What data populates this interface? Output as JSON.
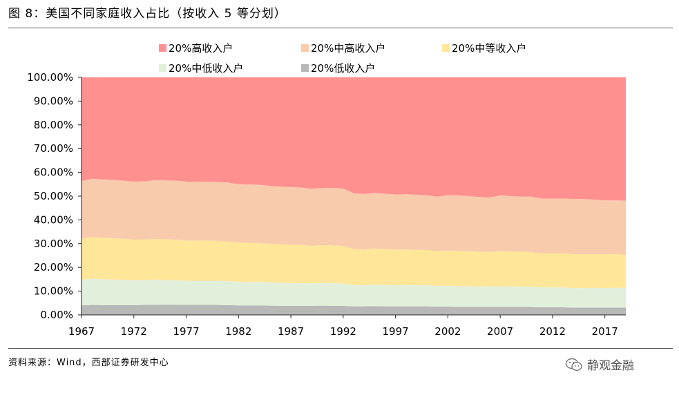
{
  "figure": {
    "title": "图 8：美国不同家庭收入占比（按收入 5 等分划）",
    "source": "资料来源：Wind，西部证券研发中心",
    "brand": "静观金融",
    "brand_icon": "wechat-icon"
  },
  "chart_data": {
    "type": "area",
    "stacked": true,
    "x": [
      1967,
      1968,
      1969,
      1970,
      1971,
      1972,
      1973,
      1974,
      1975,
      1976,
      1977,
      1978,
      1979,
      1980,
      1981,
      1982,
      1983,
      1984,
      1985,
      1986,
      1987,
      1988,
      1989,
      1990,
      1991,
      1992,
      1993,
      1994,
      1995,
      1996,
      1997,
      1998,
      1999,
      2000,
      2001,
      2002,
      2003,
      2004,
      2005,
      2006,
      2007,
      2008,
      2009,
      2010,
      2011,
      2012,
      2013,
      2014,
      2015,
      2016,
      2017,
      2018,
      2019
    ],
    "x_ticks": [
      1967,
      1972,
      1977,
      1982,
      1987,
      1992,
      1997,
      2002,
      2007,
      2012,
      2017
    ],
    "ylim": [
      0,
      100
    ],
    "y_ticks": [
      "0.00%",
      "10.00%",
      "20.00%",
      "30.00%",
      "40.00%",
      "50.00%",
      "60.00%",
      "70.00%",
      "80.00%",
      "90.00%",
      "100.00%"
    ],
    "legend_position": "top",
    "series": [
      {
        "name": "20%低收入户",
        "color": "#b8b8b8",
        "values": [
          4.0,
          4.2,
          4.1,
          4.1,
          4.1,
          4.1,
          4.2,
          4.3,
          4.3,
          4.3,
          4.2,
          4.2,
          4.2,
          4.2,
          4.1,
          4.0,
          4.0,
          4.0,
          3.9,
          3.8,
          3.8,
          3.8,
          3.8,
          3.9,
          3.8,
          3.8,
          3.6,
          3.6,
          3.7,
          3.6,
          3.6,
          3.6,
          3.6,
          3.6,
          3.5,
          3.5,
          3.4,
          3.4,
          3.4,
          3.4,
          3.4,
          3.4,
          3.4,
          3.3,
          3.2,
          3.2,
          3.2,
          3.1,
          3.1,
          3.1,
          3.1,
          3.1,
          3.1
        ]
      },
      {
        "name": "20%中低收入户",
        "color": "#e2efda",
        "values": [
          10.8,
          11.1,
          10.9,
          10.8,
          10.6,
          10.5,
          10.4,
          10.6,
          10.4,
          10.3,
          10.2,
          10.2,
          10.2,
          10.2,
          10.1,
          10.0,
          9.9,
          9.9,
          9.8,
          9.7,
          9.6,
          9.6,
          9.5,
          9.6,
          9.6,
          9.4,
          9.0,
          8.9,
          9.1,
          9.0,
          8.9,
          9.0,
          8.9,
          8.9,
          8.7,
          8.8,
          8.7,
          8.7,
          8.6,
          8.6,
          8.7,
          8.6,
          8.6,
          8.5,
          8.4,
          8.4,
          8.4,
          8.2,
          8.2,
          8.3,
          8.2,
          8.3,
          8.3
        ]
      },
      {
        "name": "20%中等收入户",
        "color": "#ffe699",
        "values": [
          17.3,
          17.5,
          17.5,
          17.4,
          17.3,
          17.1,
          17.1,
          17.1,
          17.1,
          17.1,
          16.9,
          16.9,
          16.9,
          16.8,
          16.7,
          16.5,
          16.4,
          16.3,
          16.2,
          16.2,
          16.1,
          16.0,
          15.8,
          15.9,
          15.9,
          15.8,
          15.1,
          15.0,
          15.2,
          15.1,
          15.0,
          15.0,
          14.9,
          14.8,
          14.6,
          14.8,
          14.8,
          14.7,
          14.6,
          14.5,
          14.8,
          14.7,
          14.6,
          14.6,
          14.3,
          14.4,
          14.4,
          14.3,
          14.3,
          14.2,
          14.3,
          14.1,
          14.0
        ]
      },
      {
        "name": "20%中高收入户",
        "color": "#f8cbad",
        "values": [
          24.2,
          24.5,
          24.5,
          24.5,
          24.5,
          24.4,
          24.5,
          24.7,
          24.8,
          24.8,
          24.8,
          24.8,
          24.7,
          24.8,
          24.8,
          24.5,
          24.6,
          24.6,
          24.4,
          24.3,
          24.3,
          24.2,
          24.0,
          24.0,
          24.2,
          24.2,
          23.5,
          23.4,
          23.3,
          23.3,
          23.2,
          23.2,
          23.2,
          23.0,
          23.0,
          23.3,
          23.4,
          23.2,
          23.0,
          22.9,
          23.4,
          23.3,
          23.2,
          23.4,
          23.0,
          23.0,
          23.0,
          23.2,
          23.2,
          22.9,
          22.6,
          22.7,
          22.7
        ]
      },
      {
        "name": "20%高收入户",
        "color": "#ff9090",
        "values": [
          43.7,
          42.7,
          43.0,
          43.2,
          43.5,
          43.9,
          43.8,
          43.3,
          43.4,
          43.5,
          43.9,
          43.9,
          44.0,
          44.0,
          44.3,
          45.0,
          45.1,
          45.2,
          45.7,
          46.0,
          46.2,
          46.4,
          46.9,
          46.6,
          46.5,
          46.8,
          48.8,
          49.1,
          48.7,
          49.0,
          49.3,
          49.2,
          49.4,
          49.7,
          50.2,
          49.6,
          49.7,
          50.0,
          50.4,
          50.6,
          49.7,
          50.0,
          50.2,
          50.2,
          51.1,
          51.0,
          51.0,
          51.2,
          51.2,
          51.5,
          51.8,
          51.8,
          51.9
        ]
      }
    ],
    "legend_order": [
      "20%高收入户",
      "20%中高收入户",
      "20%中等收入户",
      "20%中低收入户",
      "20%低收入户"
    ]
  }
}
